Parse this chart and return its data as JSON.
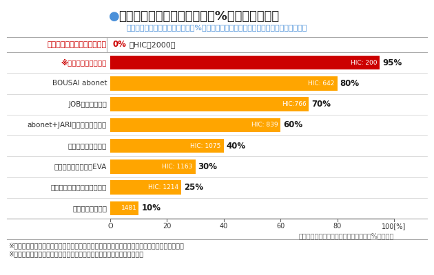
{
  "title_bullet": "●",
  "title_main": "重傷に陥るリスクの低減率（%）の比較グラフ",
  "subtitle": "グラフ１の見方：リスク低減率（%）の数値が高い程、緩衝吸収性能が強い帽子です。",
  "categories": [
    "※一般的なヘルメット",
    "BOUSAI abonet",
    "JOBスミキャップ",
    "abonet+JARIハット、キャップ",
    "セーフティインナー",
    "セーフティインナーEVA",
    "セーフティインナーメッシュ",
    "スポーツメッシュ"
  ],
  "values": [
    95,
    80,
    70,
    60,
    40,
    30,
    25,
    10
  ],
  "hic_labels": [
    "HIC: 200",
    "HIC: 642",
    "HIC:766",
    "HIC: 839",
    "HIC: 1075",
    "HIC: 1163",
    "HIC: 1214",
    "1481"
  ],
  "pct_labels": [
    "95%",
    "80%",
    "70%",
    "60%",
    "40%",
    "30%",
    "25%",
    "10%"
  ],
  "bar_colors": [
    "#CC0000",
    "#FFA500",
    "#FFA500",
    "#FFA500",
    "#FFA500",
    "#FFA500",
    "#FFA500",
    "#FFA500"
  ],
  "top_label_left": "保護帽をかぶっていない場合",
  "top_label_right_bold": "0%",
  "top_label_right_rest": "（HIC：2000）",
  "xticks": [
    0,
    20,
    40,
    60,
    80,
    100
  ],
  "footer_caption": "グラフ１：重傷に陥るリスクの低減率（%）の比較",
  "note1": "※工業用ヘルメットを用いて試験をした参考値です。製品によって値にばらつきがございます。",
  "note2": "※各製品ともに、最も衝撃を吸収できる個所で試験を行った際の値です。",
  "bg_color": "#FFFFFF",
  "subtitle_color": "#4A90D9",
  "top_label_color": "#CC0000",
  "helmet_label_color": "#CC0000",
  "normal_label_color": "#333333",
  "title_color": "#222222",
  "bullet_color": "#4A90D9",
  "divider_color_dark": "#AAAAAA",
  "divider_color_light": "#CCCCCC",
  "axis_color": "#666666",
  "note_color": "#333333",
  "footer_color": "#666666"
}
